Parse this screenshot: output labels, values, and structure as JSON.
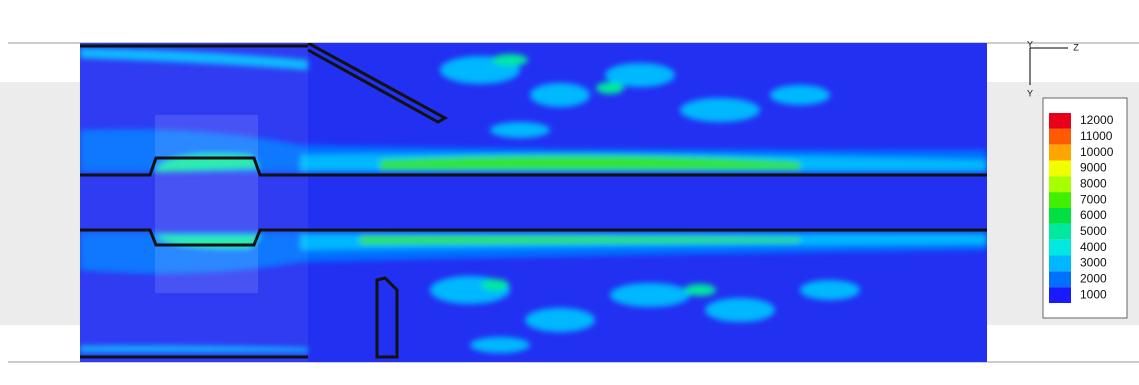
{
  "legend": {
    "levels": [
      {
        "value": 12000,
        "color": "#e8001a"
      },
      {
        "value": 11000,
        "color": "#ff5a00"
      },
      {
        "value": 10000,
        "color": "#ffa500"
      },
      {
        "value": 9000,
        "color": "#f0ff00"
      },
      {
        "value": 8000,
        "color": "#a8ff00"
      },
      {
        "value": 7000,
        "color": "#40f000"
      },
      {
        "value": 6000,
        "color": "#00e040"
      },
      {
        "value": 5000,
        "color": "#00e8a0"
      },
      {
        "value": 4000,
        "color": "#00e8e0"
      },
      {
        "value": 3000,
        "color": "#00b8ff"
      },
      {
        "value": 2000,
        "color": "#0070ff"
      },
      {
        "value": 1000,
        "color": "#1a1aff"
      }
    ]
  },
  "axes": {
    "top": "Y",
    "right": "Z",
    "bottom": "Y"
  }
}
